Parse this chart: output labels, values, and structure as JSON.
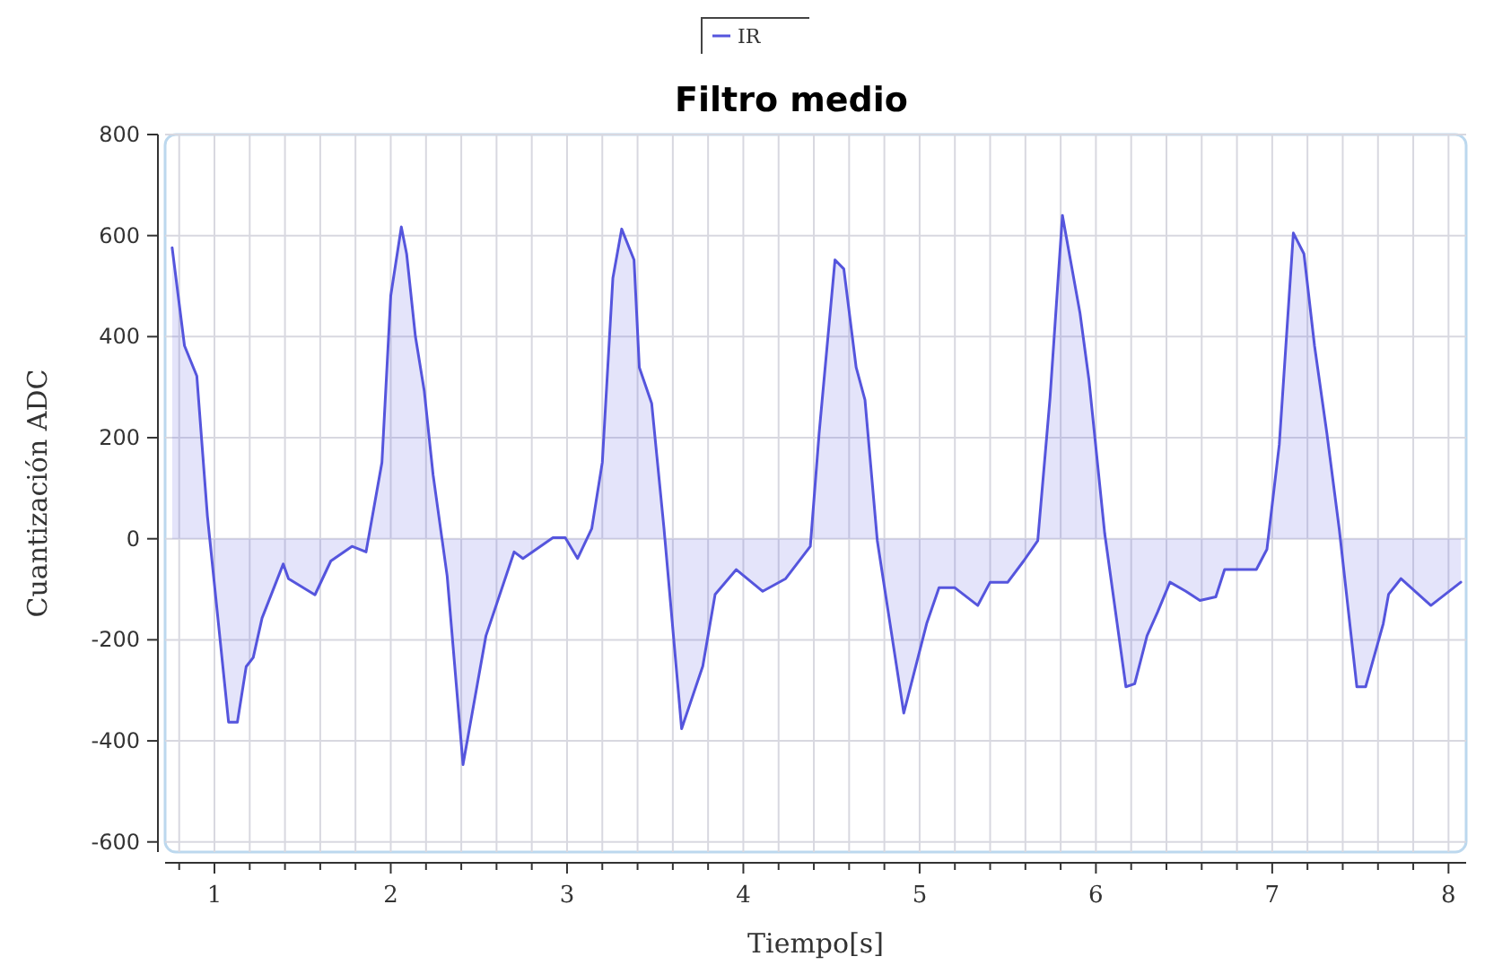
{
  "chart_data": {
    "type": "area",
    "title": "Filtro medio",
    "xlabel": "Tiempo[s]",
    "ylabel": "Cuantización ADC",
    "xlim": [
      0.72,
      8.1
    ],
    "ylim": [
      -620,
      800
    ],
    "xticks": [
      {
        "value": 0.8,
        "label": null
      },
      1,
      {
        "value": 1.2,
        "label": null
      },
      {
        "value": 1.4,
        "label": null
      },
      {
        "value": 1.6,
        "label": null
      },
      {
        "value": 1.8,
        "label": null
      },
      2,
      {
        "value": 2.2,
        "label": null
      },
      {
        "value": 2.4,
        "label": null
      },
      {
        "value": 2.6,
        "label": null
      },
      {
        "value": 2.8,
        "label": null
      },
      3,
      {
        "value": 3.2,
        "label": null
      },
      {
        "value": 3.4,
        "label": null
      },
      {
        "value": 3.6,
        "label": null
      },
      {
        "value": 3.8,
        "label": null
      },
      4,
      {
        "value": 4.2,
        "label": null
      },
      {
        "value": 4.4,
        "label": null
      },
      {
        "value": 4.6,
        "label": null
      },
      {
        "value": 4.8,
        "label": null
      },
      5,
      {
        "value": 5.2,
        "label": null
      },
      {
        "value": 5.4,
        "label": null
      },
      {
        "value": 5.6,
        "label": null
      },
      {
        "value": 5.8,
        "label": null
      },
      6,
      {
        "value": 6.2,
        "label": null
      },
      {
        "value": 6.4,
        "label": null
      },
      {
        "value": 6.6,
        "label": null
      },
      {
        "value": 6.8,
        "label": null
      },
      7,
      {
        "value": 7.2,
        "label": null
      },
      {
        "value": 7.4,
        "label": null
      },
      {
        "value": 7.6,
        "label": null
      },
      {
        "value": 7.8,
        "label": null
      },
      8
    ],
    "yticks": [
      -600,
      -400,
      -200,
      0,
      200,
      400,
      600,
      800
    ],
    "grid": true,
    "legend": "top",
    "series": [
      {
        "name": "IR",
        "color": "#5555dd",
        "x": [
          0.76,
          0.83,
          0.9,
          0.96,
          1.08,
          1.13,
          1.18,
          1.22,
          1.27,
          1.39,
          1.42,
          1.57,
          1.66,
          1.78,
          1.86,
          1.95,
          2.0,
          2.06,
          2.09,
          2.14,
          2.19,
          2.24,
          2.32,
          2.41,
          2.54,
          2.7,
          2.75,
          2.92,
          2.99,
          3.06,
          3.14,
          3.2,
          3.26,
          3.31,
          3.38,
          3.41,
          3.48,
          3.55,
          3.65,
          3.77,
          3.84,
          3.96,
          4.11,
          4.24,
          4.38,
          4.43,
          4.52,
          4.57,
          4.64,
          4.69,
          4.76,
          4.91,
          5.04,
          5.11,
          5.2,
          5.33,
          5.4,
          5.5,
          5.59,
          5.67,
          5.74,
          5.81,
          5.91,
          5.96,
          6.05,
          6.17,
          6.22,
          6.29,
          6.35,
          6.42,
          6.51,
          6.59,
          6.68,
          6.73,
          6.91,
          6.97,
          7.04,
          7.12,
          7.18,
          7.24,
          7.31,
          7.38,
          7.48,
          7.53,
          7.63,
          7.66,
          7.73,
          7.9,
          8.07
        ],
        "values": [
          576,
          382,
          322,
          45,
          -363,
          -363,
          -253,
          -235,
          -157,
          -50,
          -79,
          -111,
          -44,
          -15,
          -26,
          151,
          481,
          617,
          564,
          400,
          293,
          127,
          -74,
          -447,
          -192,
          -26,
          -39,
          2,
          2,
          -39,
          20,
          151,
          516,
          613,
          552,
          339,
          268,
          20,
          -376,
          -252,
          -110,
          -61,
          -104,
          -79,
          -15,
          209,
          552,
          534,
          339,
          275,
          -4,
          -345,
          -168,
          -97,
          -97,
          -132,
          -86,
          -86,
          -44,
          -4,
          280,
          640,
          446,
          316,
          10,
          -293,
          -287,
          -192,
          -145,
          -86,
          -104,
          -122,
          -115,
          -61,
          -61,
          -21,
          186,
          605,
          564,
          382,
          209,
          20,
          -293,
          -293,
          -168,
          -110,
          -79,
          -132,
          -86
        ]
      }
    ]
  }
}
